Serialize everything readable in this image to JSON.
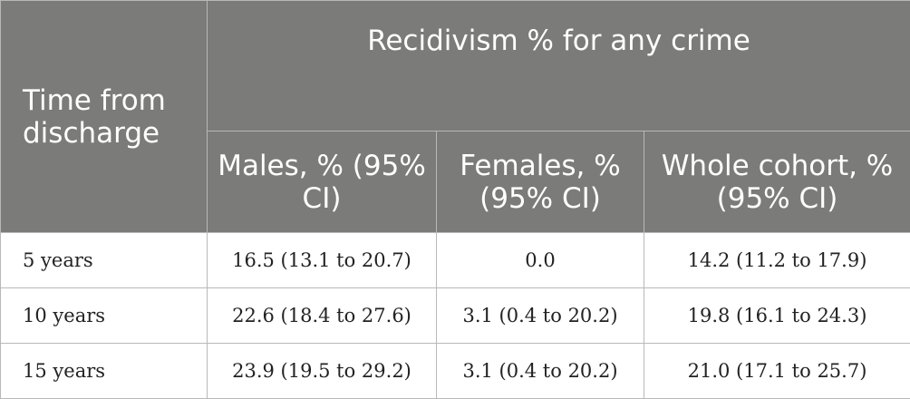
{
  "header": {
    "time_label": "Time from discharge",
    "group_label": "Recidivism % for any crime",
    "columns": [
      "Males, % (95% CI)",
      "Females, % (95% CI)",
      "Whole cohort, % (95% CI)"
    ]
  },
  "rows": [
    {
      "time": "5 years",
      "males": "16.5 (13.1 to 20.7)",
      "females": "0.0",
      "whole": "14.2 (11.2 to 17.9)"
    },
    {
      "time": "10 years",
      "males": "22.6 (18.4 to 27.6)",
      "females": "3.1 (0.4 to 20.2)",
      "whole": "19.8 (16.1 to 24.3)"
    },
    {
      "time": "15 years",
      "males": "23.9 (19.5 to 29.2)",
      "females": "3.1 (0.4 to 20.2)",
      "whole": "21.0 (17.1 to 25.7)"
    }
  ]
}
